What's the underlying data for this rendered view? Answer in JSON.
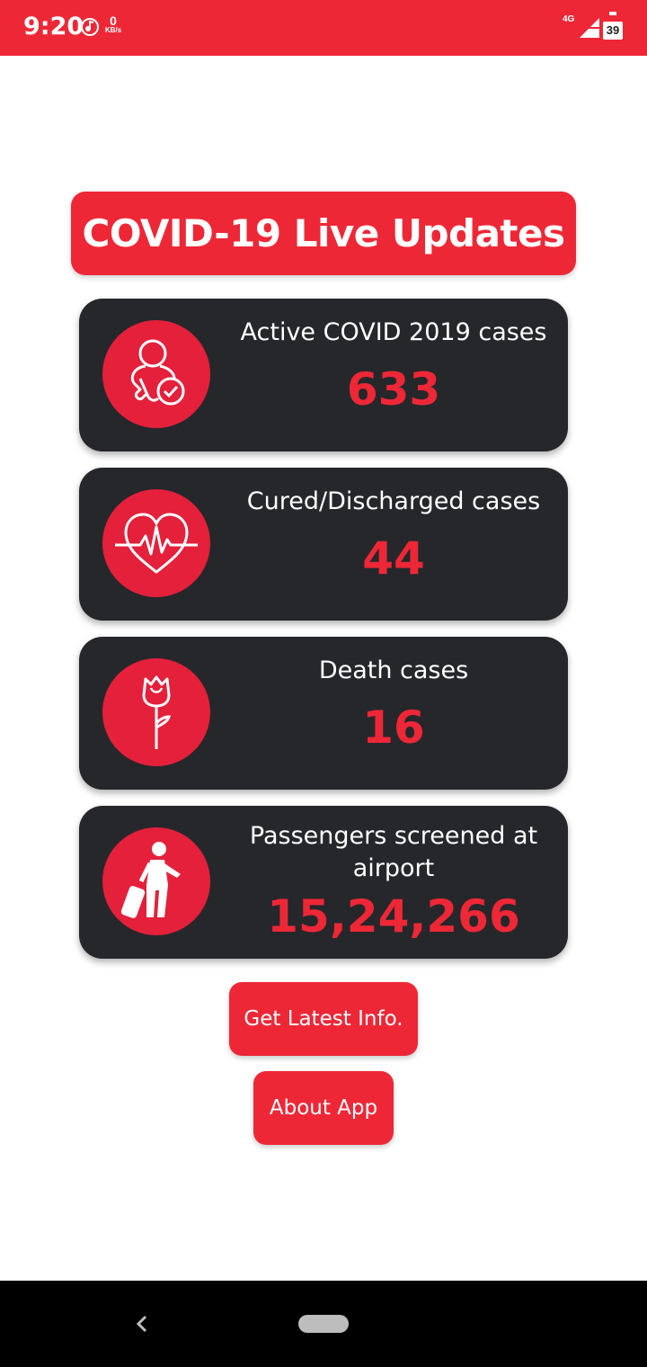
{
  "status_bar": {
    "time": "9:20",
    "net_speed_value": "0",
    "net_speed_unit": "KB/s",
    "network_type": "4G",
    "battery": "39"
  },
  "title": "COVID-19 Live Updates",
  "cards": [
    {
      "label": "Active COVID 2019 cases",
      "value": "633",
      "icon": "patient-check-icon"
    },
    {
      "label": "Cured/Discharged cases",
      "value": "44",
      "icon": "heart-pulse-icon"
    },
    {
      "label": "Death cases",
      "value": "16",
      "icon": "rose-icon"
    },
    {
      "label": "Passengers screened at airport",
      "value": "15,24,266",
      "icon": "traveler-luggage-icon"
    }
  ],
  "buttons": {
    "latest_info": "Get Latest Info.",
    "about": "About App"
  },
  "colors": {
    "accent": "#ee2737",
    "card_bg": "#25272b",
    "icon_bg": "#e4203a"
  }
}
